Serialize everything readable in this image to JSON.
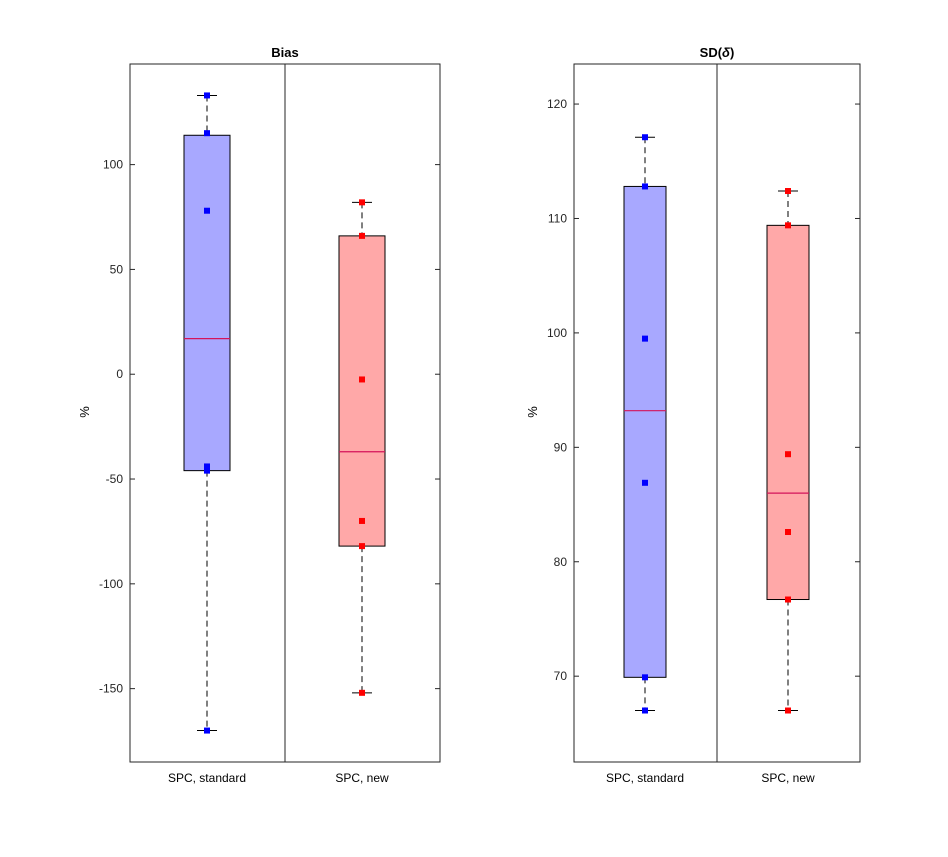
{
  "chart_data": [
    {
      "type": "box",
      "title": "Bias",
      "xlabel": "",
      "ylabel": "%",
      "ylim": [
        -185,
        148
      ],
      "yticks": [
        -150,
        -100,
        -50,
        0,
        50,
        100
      ],
      "ytick_labels": [
        "-150",
        "-100",
        "-50",
        "0",
        "50",
        "100"
      ],
      "categories": [
        "SPC, standard",
        "SPC, new"
      ],
      "boxes": [
        {
          "name": "SPC, standard",
          "color": "#0000ff",
          "fill": "#a8a8ff",
          "whisker_low": -170,
          "q1": -46,
          "median": 17,
          "q3": 114,
          "whisker_high": 133,
          "points": [
            133,
            115,
            78,
            -44,
            -46,
            -170
          ]
        },
        {
          "name": "SPC, new",
          "color": "#ff0000",
          "fill": "#ffa8a8",
          "whisker_low": -152,
          "q1": -82,
          "median": -37,
          "q3": 66,
          "whisker_high": 82,
          "points": [
            82,
            66,
            -2.5,
            -70,
            -82,
            -152
          ]
        }
      ]
    },
    {
      "type": "box",
      "title": "SD(δ)",
      "title_parts": [
        "SD(",
        "δ",
        ")"
      ],
      "xlabel": "",
      "ylabel": "%",
      "ylim": [
        62.5,
        123.5
      ],
      "yticks": [
        70,
        80,
        90,
        100,
        110,
        120
      ],
      "ytick_labels": [
        "70",
        "80",
        "90",
        "100",
        "110",
        "120"
      ],
      "categories": [
        "SPC, standard",
        "SPC, new"
      ],
      "boxes": [
        {
          "name": "SPC, standard",
          "color": "#0000ff",
          "fill": "#a8a8ff",
          "whisker_low": 67,
          "q1": 69.9,
          "median": 93.2,
          "q3": 112.8,
          "whisker_high": 117.1,
          "points": [
            117.1,
            112.8,
            99.5,
            86.9,
            69.9,
            67
          ]
        },
        {
          "name": "SPC, new",
          "color": "#ff0000",
          "fill": "#ffa8a8",
          "whisker_low": 67,
          "q1": 76.7,
          "median": 86,
          "q3": 109.4,
          "whisker_high": 112.4,
          "points": [
            112.4,
            109.4,
            89.4,
            82.6,
            76.7,
            67
          ]
        }
      ]
    }
  ]
}
